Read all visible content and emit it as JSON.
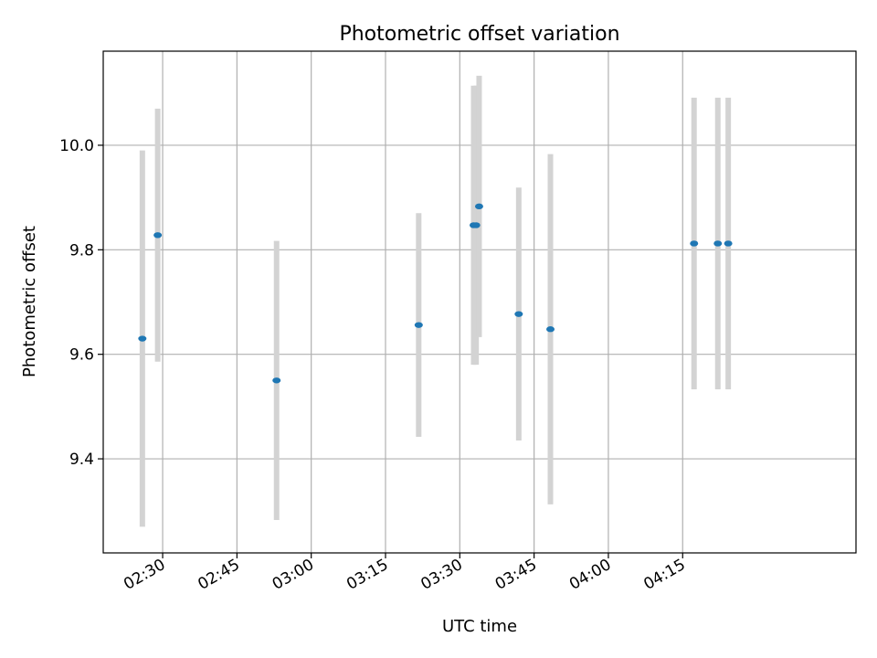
{
  "chart_data": {
    "type": "scatter",
    "title": "Photometric offset variation",
    "xlabel": "UTC time",
    "ylabel": "Photometric offset",
    "x_format": "HH:MM",
    "xlim": [
      "02:18:00",
      "04:50:00"
    ],
    "ylim": [
      9.22,
      10.18
    ],
    "x_ticks": [
      "02:30",
      "02:45",
      "03:00",
      "03:15",
      "03:30",
      "03:45",
      "04:00",
      "04:15"
    ],
    "y_ticks": [
      9.4,
      9.6,
      9.8,
      10.0
    ],
    "y_tick_labels": [
      "9.4",
      "9.6",
      "9.8",
      "10.0"
    ],
    "grid": true,
    "marker_color": "#1f77b4",
    "errorbar_color": "#d3d3d3",
    "points": [
      {
        "x": "02:25:54",
        "y": 9.63,
        "err": 0.36
      },
      {
        "x": "02:29:00",
        "y": 9.828,
        "err": 0.242
      },
      {
        "x": "02:53:00",
        "y": 9.55,
        "err": 0.267
      },
      {
        "x": "03:21:42",
        "y": 9.656,
        "err": 0.214
      },
      {
        "x": "03:32:48",
        "y": 9.847,
        "err": 0.267
      },
      {
        "x": "03:33:18",
        "y": 9.847,
        "err": 0.267
      },
      {
        "x": "03:33:54",
        "y": 9.883,
        "err": 0.25
      },
      {
        "x": "03:41:54",
        "y": 9.677,
        "err": 0.242
      },
      {
        "x": "03:48:18",
        "y": 9.648,
        "err": 0.335
      },
      {
        "x": "04:17:18",
        "y": 9.812,
        "err": 0.279
      },
      {
        "x": "04:22:06",
        "y": 9.812,
        "err": 0.279
      },
      {
        "x": "04:24:12",
        "y": 9.812,
        "err": 0.279
      }
    ]
  }
}
